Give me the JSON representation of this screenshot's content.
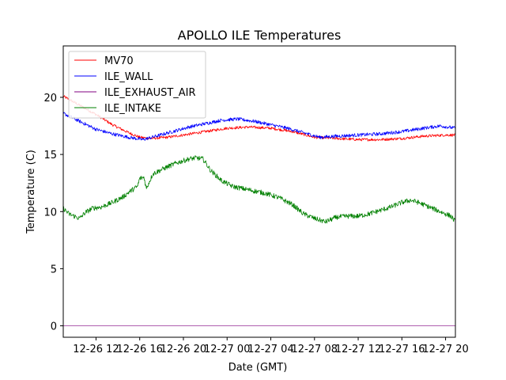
{
  "chart_data": {
    "type": "line",
    "title": "APOLLO ILE Temperatures",
    "xlabel": "Date (GMT)",
    "ylabel": "Temperature (C)",
    "xlim_hours": [
      9.0,
      44.9
    ],
    "ylim": [
      -1,
      24.5
    ],
    "x_ticks": [
      {
        "hour": 12,
        "label": "12-26 12"
      },
      {
        "hour": 16,
        "label": "12-26 16"
      },
      {
        "hour": 20,
        "label": "12-26 20"
      },
      {
        "hour": 24,
        "label": "12-27 00"
      },
      {
        "hour": 28,
        "label": "12-27 04"
      },
      {
        "hour": 32,
        "label": "12-27 08"
      },
      {
        "hour": 36,
        "label": "12-27 12"
      },
      {
        "hour": 40,
        "label": "12-27 16"
      },
      {
        "hour": 44,
        "label": "12-27 20"
      }
    ],
    "y_ticks": [
      0,
      5,
      10,
      15,
      20
    ],
    "legend_position": "top-left",
    "series": [
      {
        "name": "MV70",
        "color": "#ff0000",
        "noise": 0.12,
        "x": [
          9.0,
          10.5,
          12.0,
          13.5,
          15.0,
          16.0,
          17.0,
          18.5,
          20.0,
          22.0,
          24.0,
          26.0,
          28.0,
          30.0,
          32.0,
          34.0,
          36.0,
          38.0,
          40.0,
          42.0,
          44.0,
          44.9
        ],
        "y": [
          20.1,
          19.3,
          18.5,
          17.6,
          16.9,
          16.5,
          16.4,
          16.5,
          16.7,
          17.0,
          17.3,
          17.4,
          17.3,
          17.0,
          16.5,
          16.4,
          16.3,
          16.3,
          16.4,
          16.6,
          16.7,
          16.7
        ]
      },
      {
        "name": "ILE_WALL",
        "color": "#0000ff",
        "noise": 0.15,
        "x": [
          9.0,
          10.5,
          12.0,
          13.5,
          15.0,
          16.3,
          17.5,
          19.0,
          20.5,
          22.0,
          23.5,
          25.0,
          26.5,
          28.0,
          29.5,
          31.0,
          32.5,
          34.0,
          36.0,
          38.0,
          40.0,
          42.0,
          43.5,
          44.9
        ],
        "y": [
          18.6,
          17.9,
          17.2,
          16.8,
          16.5,
          16.3,
          16.6,
          17.0,
          17.4,
          17.7,
          18.0,
          18.1,
          17.9,
          17.6,
          17.3,
          16.9,
          16.5,
          16.6,
          16.7,
          16.8,
          17.0,
          17.3,
          17.5,
          17.3
        ]
      },
      {
        "name": "ILE_EXHAUST_AIR",
        "color": "#800080",
        "noise": 0,
        "x": [
          9.0,
          44.9
        ],
        "y": [
          0.0,
          0.0
        ]
      },
      {
        "name": "ILE_INTAKE",
        "color": "#008000",
        "noise": 0.22,
        "x": [
          9.0,
          9.5,
          10.5,
          11.0,
          11.7,
          12.5,
          13.5,
          14.5,
          15.0,
          15.8,
          16.0,
          16.4,
          16.6,
          17.2,
          18.5,
          19.5,
          20.5,
          21.2,
          21.8,
          22.5,
          23.5,
          24.5,
          26.0,
          27.5,
          28.5,
          29.0,
          30.0,
          31.0,
          32.0,
          33.0,
          34.0,
          35.0,
          36.0,
          37.0,
          38.0,
          39.0,
          40.0,
          40.8,
          41.5,
          42.5,
          43.5,
          44.5,
          44.9
        ],
        "y": [
          10.3,
          9.8,
          9.4,
          9.9,
          10.3,
          10.4,
          10.8,
          11.3,
          11.7,
          12.2,
          12.9,
          13.0,
          12.0,
          13.3,
          13.9,
          14.3,
          14.6,
          14.7,
          14.6,
          13.6,
          12.7,
          12.2,
          11.9,
          11.6,
          11.3,
          11.1,
          10.6,
          9.8,
          9.4,
          9.1,
          9.5,
          9.6,
          9.6,
          9.8,
          10.1,
          10.4,
          10.8,
          11.0,
          10.8,
          10.4,
          10.0,
          9.6,
          9.1
        ]
      }
    ]
  }
}
